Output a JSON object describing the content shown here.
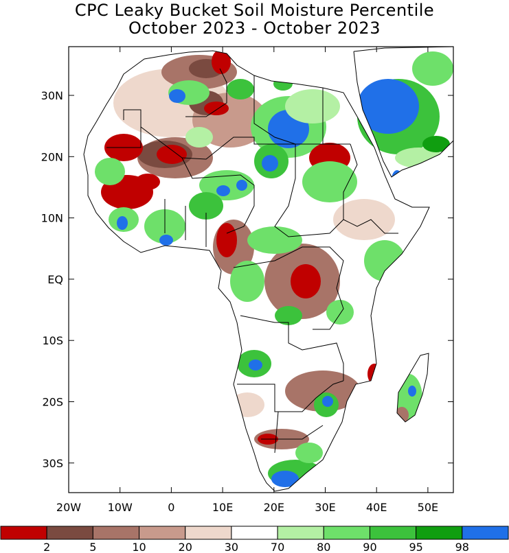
{
  "title": {
    "line1": "CPC Leaky Bucket Soil Moisture Percentile",
    "line2": "October 2023 - October 2023"
  },
  "map": {
    "lat_labels": [
      "30N",
      "20N",
      "10N",
      "EQ",
      "10S",
      "20S",
      "30S"
    ],
    "lon_labels": [
      "20W",
      "10W",
      "0",
      "10E",
      "20E",
      "30E",
      "40E",
      "50E"
    ]
  },
  "colorbar": {
    "colors": [
      "#c00000",
      "#7a4a40",
      "#a87468",
      "#c89a8c",
      "#eed8cc",
      "#ffffff",
      "#b4f0a4",
      "#6ee06a",
      "#3cc23c",
      "#109e10",
      "#2070e8"
    ],
    "labels": [
      "2",
      "5",
      "10",
      "20",
      "30",
      "70",
      "80",
      "90",
      "95",
      "98"
    ]
  }
}
